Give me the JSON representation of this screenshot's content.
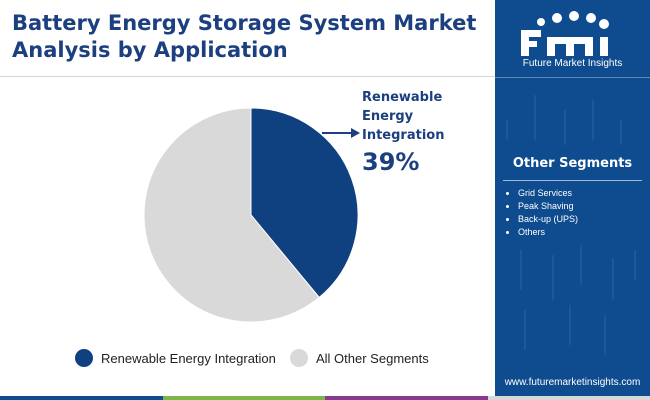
{
  "header": {
    "title_line1": "Battery Energy Storage System Market",
    "title_line2": "Analysis by Application"
  },
  "chart_data": {
    "type": "pie",
    "title": "Battery Energy Storage System Market Analysis by Application",
    "slices": [
      {
        "label": "Renewable Energy Integration",
        "value": 39,
        "color": "#0f4080"
      },
      {
        "label": "All Other Segments",
        "value": 61,
        "color": "#d9d9d9"
      }
    ],
    "annotation": {
      "label": "Renewable Energy\nIntegration",
      "value_text": "39%"
    },
    "legend_position": "bottom"
  },
  "legend": [
    {
      "label": "Renewable Energy Integration",
      "color": "#0f4080"
    },
    {
      "label": "All Other Segments",
      "color": "#d9d9d9"
    }
  ],
  "sidebar": {
    "logo_wordmark": "fmi",
    "logo_tagline": "Future Market Insights",
    "heading": "Other Segments",
    "items": [
      "Grid Services",
      "Peak Shaving",
      "Back-up (UPS)",
      "Others"
    ],
    "website": "www.futuremarketinsights.com"
  },
  "colors": {
    "title": "#1b3f7f",
    "sidebar_bg": "#0f4c8f",
    "bottom_bar": [
      "#0f4c8f",
      "#7ab648",
      "#8a3a8e",
      "#d8d8d8"
    ]
  }
}
